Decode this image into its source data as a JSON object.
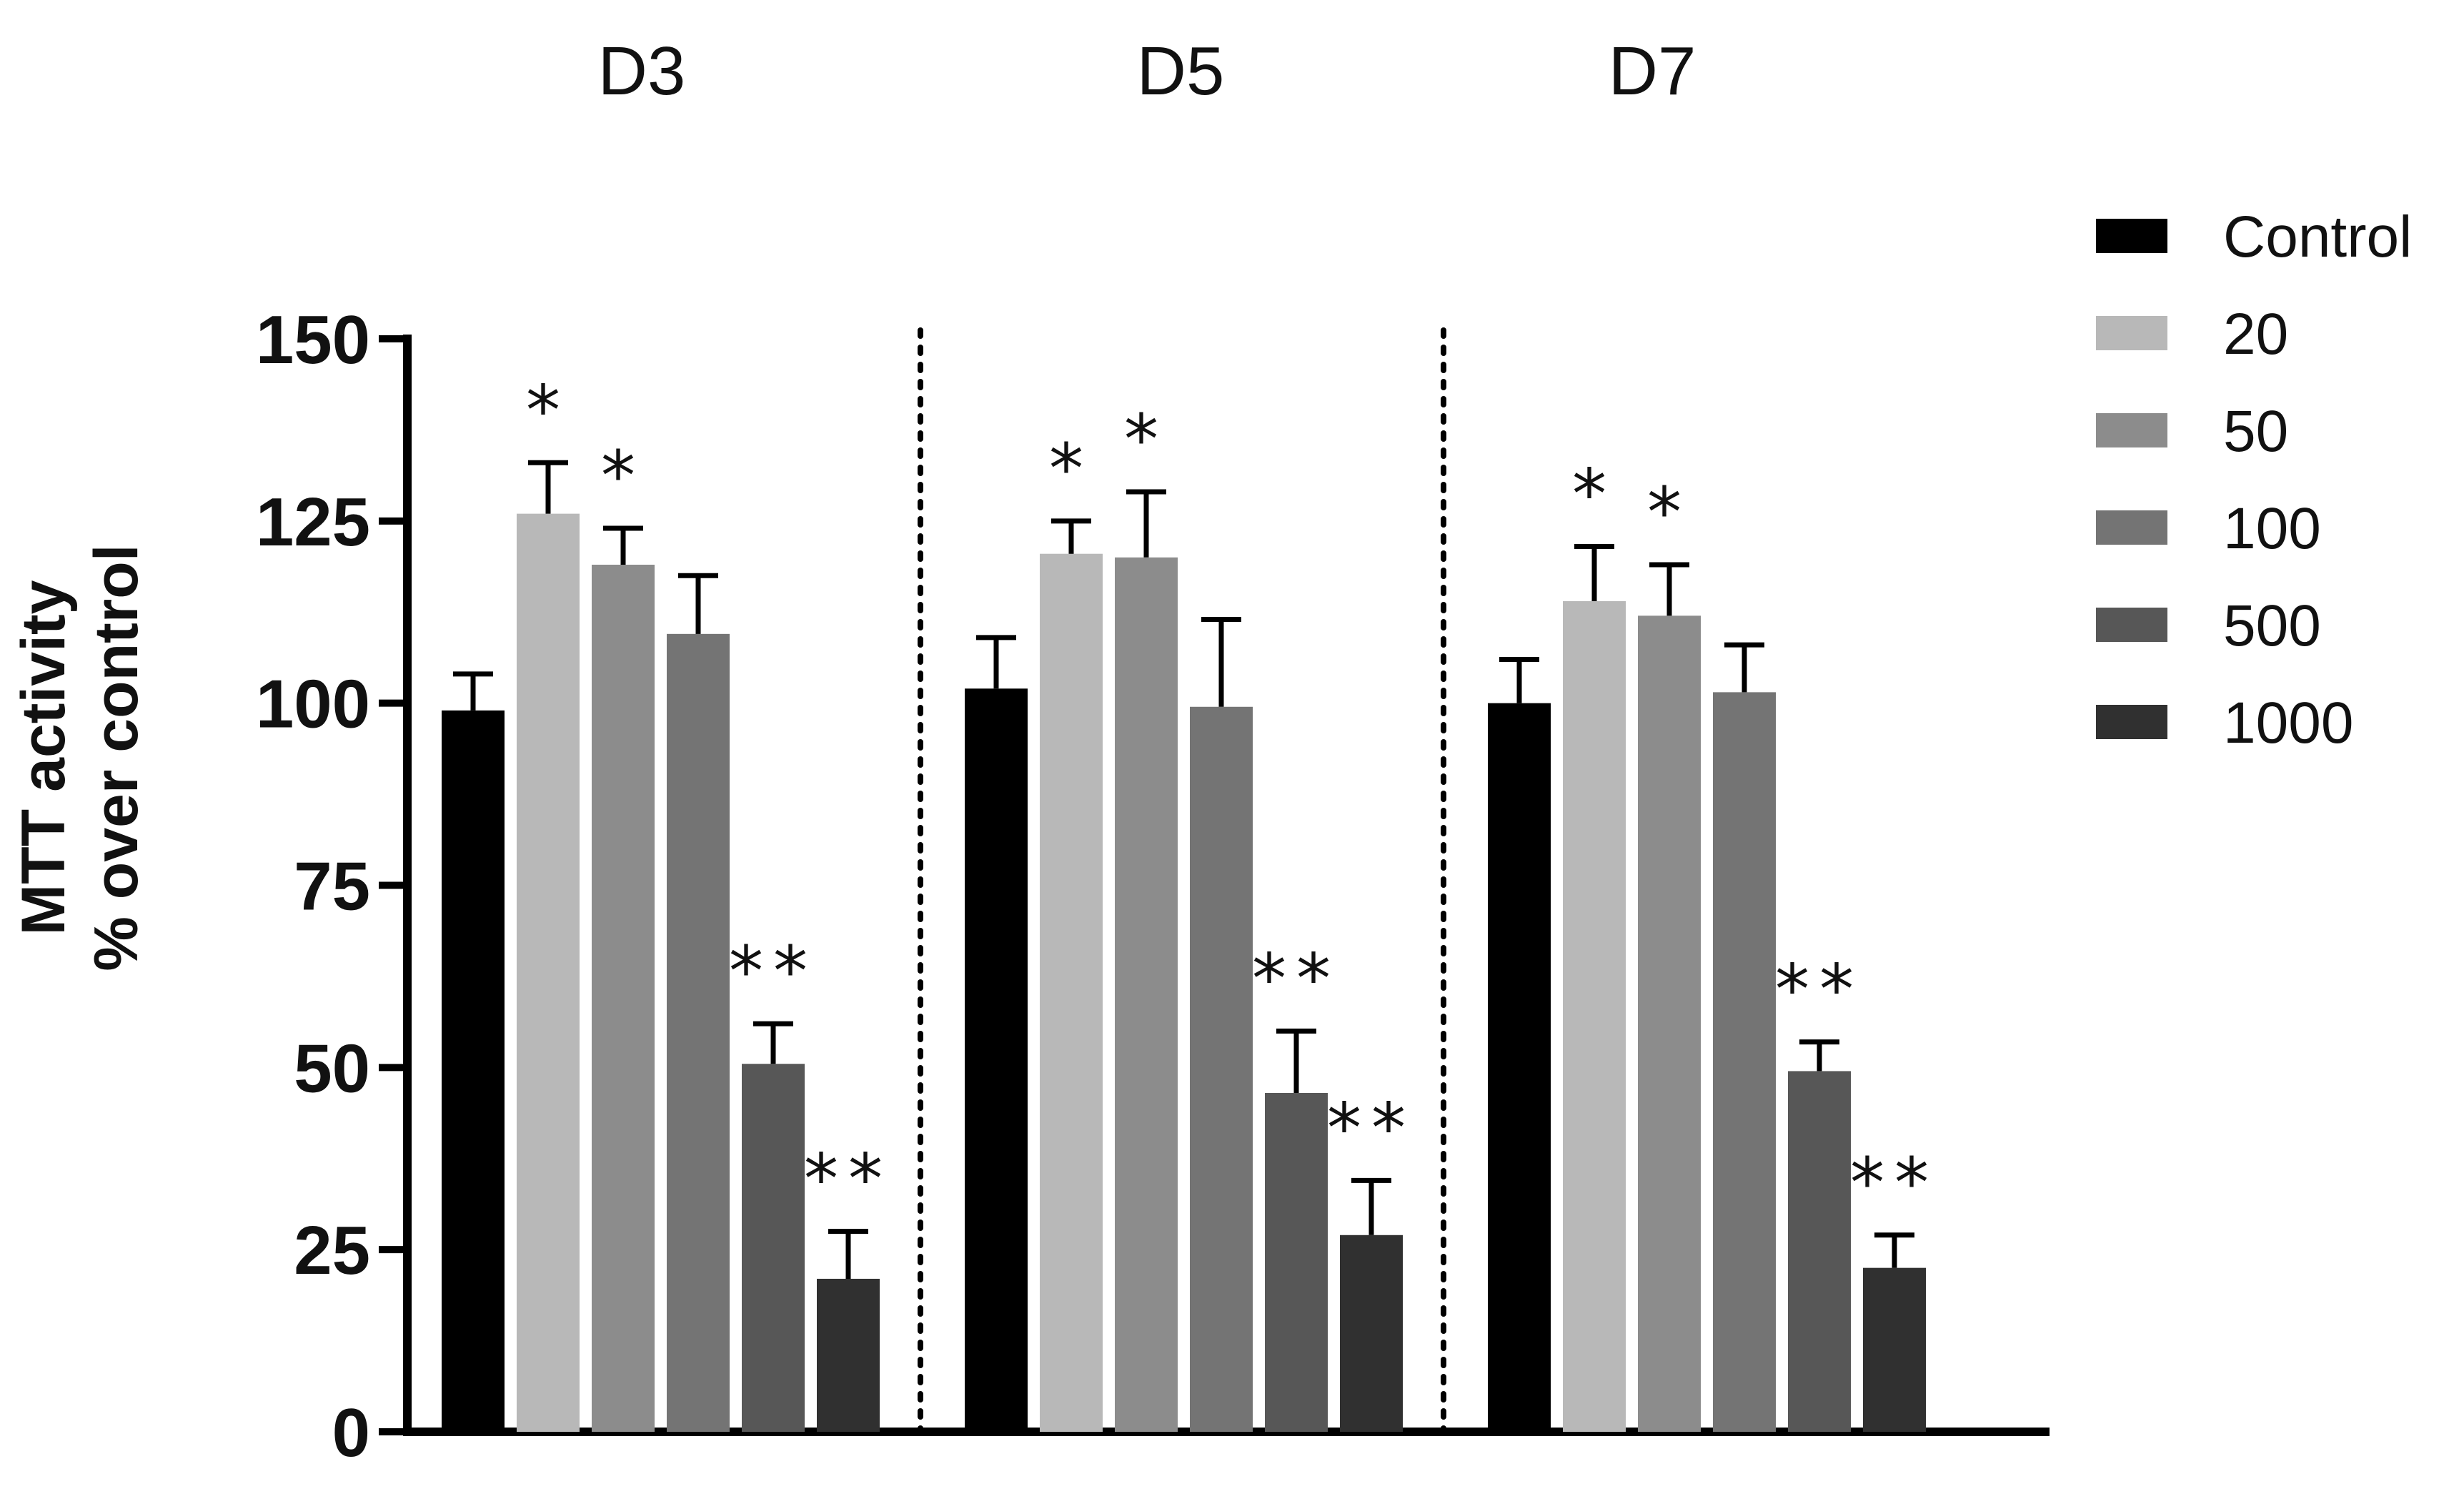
{
  "chart_data": {
    "type": "bar",
    "title": "",
    "xlabel": "",
    "ylabel_lines": [
      "MTT activity",
      "% over control"
    ],
    "ylim": [
      0,
      150
    ],
    "yticks": [
      "0",
      "25",
      "50",
      "75",
      "100",
      "125",
      "150"
    ],
    "groups": [
      "D3",
      "D5",
      "D7"
    ],
    "group_separator": "dotted",
    "legend_position": "top-right",
    "series": [
      {
        "name": "Control",
        "color": "#000000",
        "values": [
          99,
          102,
          100
        ],
        "errors": [
          5,
          7,
          6
        ],
        "significance": [
          "",
          "",
          ""
        ]
      },
      {
        "name": "20",
        "color": "#b8b8b8",
        "values": [
          126,
          120.5,
          114
        ],
        "errors": [
          7,
          4.5,
          7.5
        ],
        "significance": [
          "*",
          "*",
          "*"
        ]
      },
      {
        "name": "50",
        "color": "#8c8c8c",
        "values": [
          119,
          120,
          112
        ],
        "errors": [
          5,
          9,
          7
        ],
        "significance": [
          "*",
          "*",
          "*"
        ]
      },
      {
        "name": "100",
        "color": "#747474",
        "values": [
          109.5,
          99.5,
          101.5
        ],
        "errors": [
          8,
          12,
          6.5
        ],
        "significance": [
          "",
          "",
          ""
        ]
      },
      {
        "name": "500",
        "color": "#575757",
        "values": [
          50.5,
          46.5,
          49.5
        ],
        "errors": [
          5.5,
          8.5,
          4
        ],
        "significance": [
          "**",
          "**",
          "**"
        ]
      },
      {
        "name": "1000",
        "color": "#303030",
        "values": [
          21,
          27,
          22.5
        ],
        "errors": [
          6.5,
          7.5,
          4.5
        ],
        "significance": [
          "**",
          "**",
          "**"
        ]
      }
    ]
  }
}
